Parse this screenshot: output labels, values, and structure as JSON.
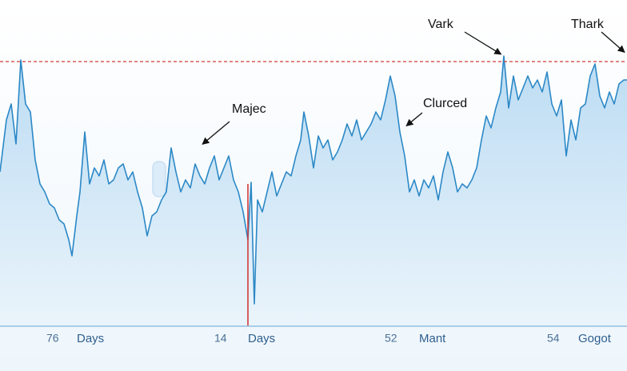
{
  "chart_data": {
    "type": "area",
    "color": "#2b88c6",
    "x": [
      0,
      8,
      14,
      20,
      26,
      32,
      38,
      44,
      50,
      56,
      62,
      68,
      74,
      80,
      86,
      90,
      96,
      100,
      106,
      112,
      118,
      124,
      130,
      136,
      142,
      148,
      154,
      160,
      166,
      172,
      178,
      184,
      190,
      196,
      202,
      208,
      214,
      220,
      226,
      232,
      238,
      244,
      250,
      256,
      262,
      268,
      274,
      280,
      286,
      292,
      298,
      304,
      310,
      314,
      318,
      322,
      328,
      334,
      340,
      346,
      352,
      358,
      364,
      370,
      376,
      380,
      386,
      392,
      398,
      404,
      410,
      416,
      422,
      428,
      434,
      440,
      446,
      452,
      458,
      464,
      470,
      476,
      482,
      488,
      494,
      500,
      506,
      512,
      518,
      524,
      530,
      536,
      542,
      548,
      554,
      560,
      566,
      572,
      578,
      584,
      590,
      596,
      602,
      608,
      614,
      620,
      626,
      630,
      636,
      642,
      648,
      654,
      660,
      666,
      672,
      678,
      684,
      690,
      696,
      702,
      708,
      714,
      720,
      726,
      732,
      738,
      744,
      750,
      756,
      762,
      768,
      774,
      780,
      784
    ],
    "values": [
      193,
      258,
      278,
      228,
      333,
      278,
      268,
      208,
      178,
      168,
      153,
      148,
      133,
      128,
      108,
      88,
      138,
      168,
      243,
      178,
      198,
      188,
      208,
      178,
      183,
      198,
      203,
      183,
      193,
      168,
      148,
      113,
      138,
      143,
      158,
      168,
      223,
      193,
      168,
      183,
      173,
      203,
      188,
      178,
      198,
      213,
      183,
      198,
      213,
      183,
      168,
      143,
      108,
      180,
      28,
      158,
      143,
      168,
      193,
      163,
      178,
      193,
      188,
      213,
      233,
      268,
      238,
      198,
      238,
      223,
      233,
      208,
      218,
      233,
      253,
      238,
      258,
      233,
      243,
      253,
      268,
      258,
      283,
      313,
      288,
      243,
      213,
      168,
      183,
      163,
      183,
      173,
      188,
      158,
      193,
      218,
      198,
      168,
      178,
      173,
      183,
      198,
      233,
      263,
      248,
      273,
      293,
      338,
      273,
      313,
      283,
      298,
      313,
      298,
      308,
      293,
      318,
      278,
      263,
      283,
      213,
      258,
      233,
      273,
      278,
      313,
      328,
      288,
      273,
      293,
      278,
      303,
      308,
      308
    ],
    "xlim": [
      0,
      784
    ],
    "ylim": [
      0,
      360
    ],
    "reference_line": {
      "value": 331,
      "color": "#d23a3a"
    },
    "marker": {
      "x": 310,
      "top": 178,
      "color": "#d23a3a"
    },
    "annotations": [
      {
        "text": "Vark",
        "x": 630,
        "y": 338
      },
      {
        "text": "Thark",
        "x": 784,
        "y": 340
      },
      {
        "text": "Majec",
        "x": 250,
        "y": 225
      },
      {
        "text": "Clurced",
        "x": 505,
        "y": 248
      }
    ],
    "x_labels": [
      {
        "number": "76",
        "text": "Days"
      },
      {
        "number": "14",
        "text": "Days"
      },
      {
        "number": "52",
        "text": "Mant"
      },
      {
        "number": "54",
        "text": "Gogot"
      }
    ]
  }
}
